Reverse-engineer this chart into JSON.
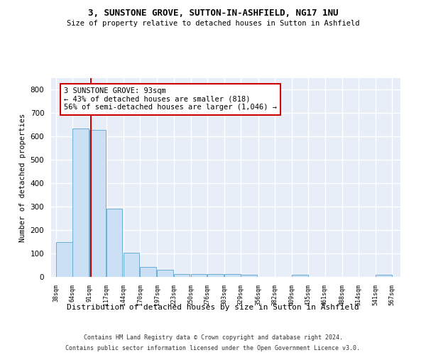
{
  "title": "3, SUNSTONE GROVE, SUTTON-IN-ASHFIELD, NG17 1NU",
  "subtitle": "Size of property relative to detached houses in Sutton in Ashfield",
  "xlabel": "Distribution of detached houses by size in Sutton in Ashfield",
  "ylabel": "Number of detached properties",
  "footer_line1": "Contains HM Land Registry data © Crown copyright and database right 2024.",
  "footer_line2": "Contains public sector information licensed under the Open Government Licence v3.0.",
  "annotation_line1": "3 SUNSTONE GROVE: 93sqm",
  "annotation_line2": "← 43% of detached houses are smaller (818)",
  "annotation_line3": "56% of semi-detached houses are larger (1,046) →",
  "property_size": 93,
  "bar_color": "#cce0f5",
  "bar_edge_color": "#6aaed6",
  "marker_color": "#cc0000",
  "annotation_box_color": "#cc0000",
  "background_color": "#e8eef8",
  "grid_color": "#ffffff",
  "bins": [
    38,
    64,
    91,
    117,
    144,
    170,
    197,
    223,
    250,
    276,
    303,
    329,
    356,
    382,
    409,
    435,
    461,
    488,
    514,
    541,
    567
  ],
  "counts": [
    150,
    635,
    628,
    290,
    103,
    42,
    29,
    11,
    11,
    11,
    11,
    10,
    0,
    0,
    8,
    0,
    0,
    0,
    0,
    8
  ],
  "ylim": [
    0,
    850
  ],
  "yticks": [
    0,
    100,
    200,
    300,
    400,
    500,
    600,
    700,
    800
  ]
}
